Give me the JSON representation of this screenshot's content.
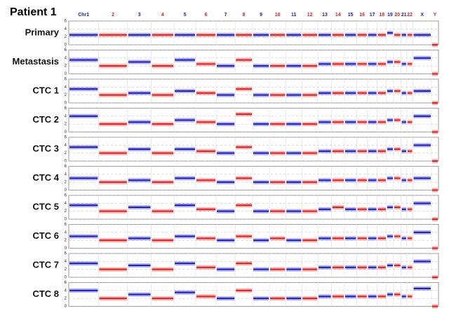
{
  "title": "Patient 1",
  "chromosomes": {
    "labels": [
      "Chr1",
      "2",
      "3",
      "4",
      "5",
      "6",
      "7",
      "8",
      "9",
      "10",
      "11",
      "12",
      "13",
      "14",
      "15",
      "16",
      "17",
      "18",
      "19",
      "20",
      "21",
      "22",
      "X",
      "Y"
    ],
    "colors": [
      "#1c1cc0",
      "#e02020",
      "#1c1cc0",
      "#e02020",
      "#1c1cc0",
      "#e02020",
      "#1c1cc0",
      "#e02020",
      "#1c1cc0",
      "#e02020",
      "#1c1cc0",
      "#e02020",
      "#1c1cc0",
      "#e02020",
      "#1c1cc0",
      "#e02020",
      "#1c1cc0",
      "#e02020",
      "#1c1cc0",
      "#e02020",
      "#1c1cc0",
      "#e02020",
      "#1c1cc0",
      "#e02020"
    ]
  },
  "chart_data": [
    {
      "type": "segment",
      "title": "Primary",
      "ylim": [
        0,
        6
      ],
      "yticks": [
        0,
        2,
        4,
        6
      ],
      "values": [
        2.5,
        2.5,
        2.5,
        2.5,
        2.5,
        2.5,
        2.5,
        2.5,
        2.5,
        2.5,
        2.5,
        2.5,
        2.5,
        2.5,
        2.5,
        2.5,
        2.5,
        2.5,
        3,
        2.5,
        2.5,
        2.5,
        2.5,
        0
      ]
    },
    {
      "type": "segment",
      "title": "Metastasis",
      "ylim": [
        0,
        6
      ],
      "yticks": [
        0,
        2,
        4,
        6
      ],
      "values": [
        3.5,
        2,
        3,
        2,
        3.5,
        2.5,
        2,
        3.5,
        2,
        2,
        2,
        2,
        2.5,
        2.5,
        2.5,
        2.5,
        2.5,
        2.5,
        3,
        3,
        2.5,
        2.5,
        4,
        0
      ]
    },
    {
      "type": "segment",
      "title": "CTC 1",
      "ylim": [
        0,
        6
      ],
      "yticks": [
        0,
        2,
        4,
        6
      ],
      "values": [
        3.5,
        2,
        2.5,
        2,
        3,
        2.5,
        2,
        3.5,
        2,
        2,
        2,
        2,
        2.5,
        2.5,
        2.5,
        2.5,
        2.5,
        2.5,
        3,
        3,
        2.5,
        2.5,
        3,
        0
      ]
    },
    {
      "type": "segment",
      "title": "CTC 2",
      "ylim": [
        0,
        6
      ],
      "yticks": [
        0,
        2,
        4,
        6
      ],
      "values": [
        4,
        2,
        2.5,
        2,
        3,
        2.5,
        2,
        4.5,
        2,
        2,
        2,
        2,
        2.5,
        2.5,
        2.5,
        2.5,
        2.5,
        2.5,
        3,
        3,
        2.5,
        2.5,
        4,
        0
      ]
    },
    {
      "type": "segment",
      "title": "CTC 3",
      "ylim": [
        0,
        6
      ],
      "yticks": [
        0,
        2,
        4,
        6
      ],
      "values": [
        3.5,
        2,
        3,
        2,
        3,
        2.5,
        2,
        3.5,
        2,
        2,
        2,
        2,
        2.5,
        2.5,
        2.5,
        2.5,
        2.5,
        2.5,
        3,
        3,
        2.5,
        2.5,
        4,
        0
      ]
    },
    {
      "type": "segment",
      "title": "CTC 4",
      "ylim": [
        0,
        6
      ],
      "yticks": [
        0,
        2,
        4,
        6
      ],
      "values": [
        3,
        2,
        2.5,
        2,
        3,
        2.5,
        2,
        3,
        2,
        2,
        2,
        2,
        2.5,
        2.5,
        2.5,
        2.5,
        2.5,
        2.5,
        3,
        3,
        2.5,
        2.5,
        3,
        0
      ]
    },
    {
      "type": "segment",
      "title": "CTC 5",
      "ylim": [
        0,
        6
      ],
      "yticks": [
        0,
        2,
        4,
        6
      ],
      "values": [
        3.5,
        2,
        3,
        2,
        3.5,
        2.5,
        2,
        3.5,
        2,
        2,
        2,
        2,
        2.5,
        3,
        2.5,
        2.5,
        2.5,
        2.5,
        3,
        3,
        2.5,
        2.5,
        4,
        0
      ]
    },
    {
      "type": "segment",
      "title": "CTC 6",
      "ylim": [
        0,
        6
      ],
      "yticks": [
        0,
        2,
        4,
        6
      ],
      "values": [
        3,
        2,
        2.5,
        2,
        3,
        2.5,
        2,
        3,
        2,
        2.5,
        2,
        2,
        2.5,
        2.5,
        2.5,
        2.5,
        2.5,
        2.5,
        3,
        3,
        2.5,
        2.5,
        4,
        0
      ]
    },
    {
      "type": "segment",
      "title": "CTC 7",
      "ylim": [
        0,
        6
      ],
      "yticks": [
        0,
        2,
        4,
        6
      ],
      "values": [
        3.5,
        2,
        3,
        2,
        3.5,
        2.5,
        2,
        3.5,
        2,
        2,
        2,
        2,
        2.5,
        2.5,
        2.5,
        2.5,
        2.5,
        2.5,
        3,
        3,
        2.5,
        2.5,
        4,
        0
      ]
    },
    {
      "type": "segment",
      "title": "CTC 8",
      "ylim": [
        0,
        6
      ],
      "yticks": [
        0,
        2,
        4,
        6
      ],
      "values": [
        4,
        2,
        3,
        2,
        3.5,
        2.5,
        2,
        4,
        2,
        2,
        2,
        2,
        2.5,
        2.5,
        2.5,
        2.5,
        2.5,
        2.5,
        3,
        3,
        2.5,
        2.5,
        4.5,
        0
      ]
    }
  ]
}
